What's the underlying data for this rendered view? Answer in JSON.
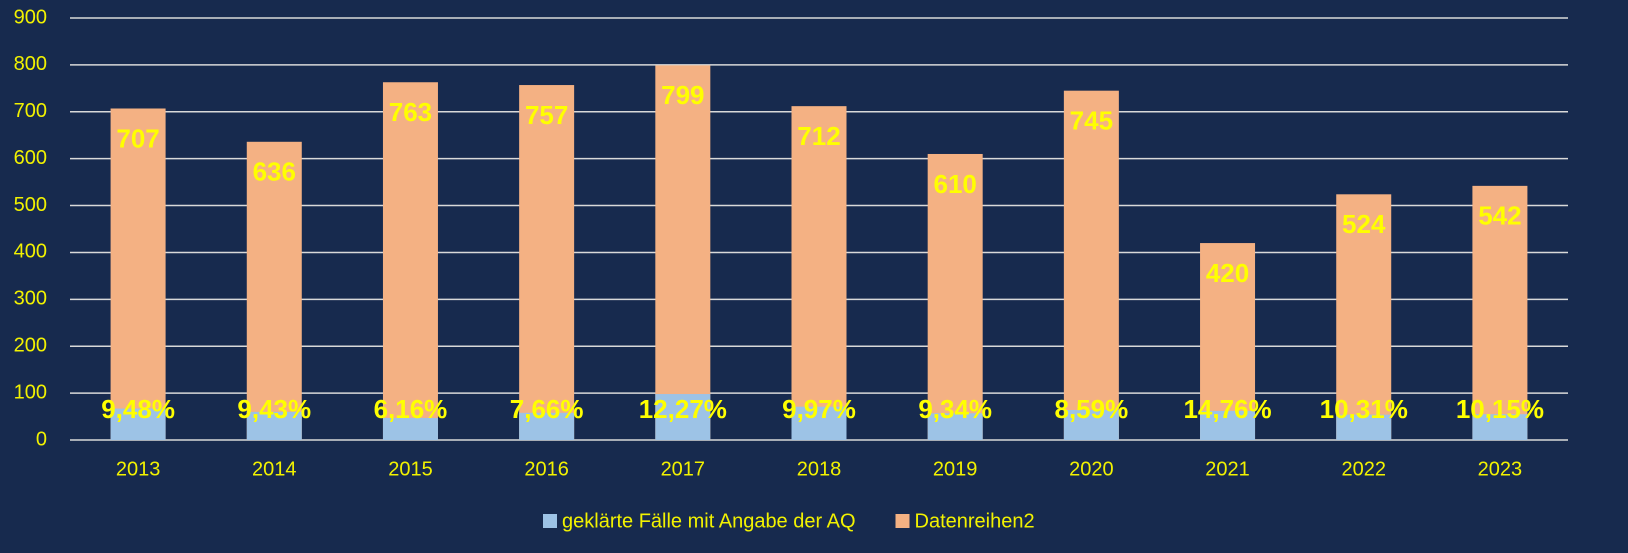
{
  "chart_data": {
    "type": "bar",
    "overlap": true,
    "categories": [
      "2013",
      "2014",
      "2015",
      "2016",
      "2017",
      "2018",
      "2019",
      "2020",
      "2021",
      "2022",
      "2023"
    ],
    "series": [
      {
        "name": "geklärte Fälle mit Angabe der AQ",
        "color": "#9dc3e6",
        "share_of": "Datenreihen2",
        "values": [
          9.48,
          9.43,
          6.16,
          7.66,
          12.27,
          9.97,
          9.34,
          8.59,
          14.76,
          10.31,
          10.15
        ],
        "value_labels": [
          "9,48%",
          "9,43%",
          "6,16%",
          "7,66%",
          "12,27%",
          "9,97%",
          "9,34%",
          "8,59%",
          "14,76%",
          "10,31%",
          "10,15%"
        ]
      },
      {
        "name": "Datenreihen2",
        "color": "#f4b183",
        "values": [
          707,
          636,
          763,
          757,
          799,
          712,
          610,
          745,
          420,
          524,
          542
        ]
      }
    ],
    "ylim": [
      0,
      900
    ],
    "yticks": [
      0,
      100,
      200,
      300,
      400,
      500,
      600,
      700,
      800,
      900
    ],
    "grid": true,
    "legend": "bottom"
  }
}
